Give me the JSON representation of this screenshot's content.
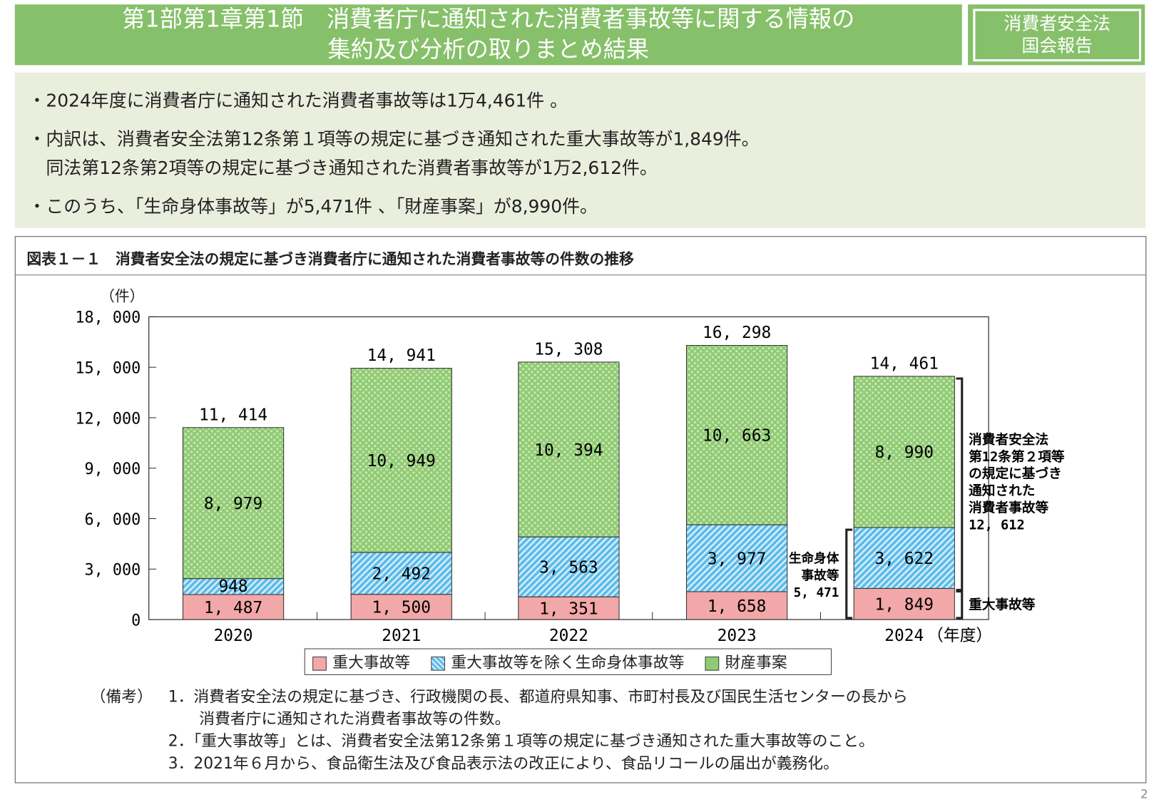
{
  "header": {
    "title_line1": "第1部第1章第1節　消費者庁に通知された消費者事故等に関する情報の",
    "title_line2": "集約及び分析の取りまとめ結果",
    "badge_line1": "消費者安全法",
    "badge_line2": "国会報告"
  },
  "summary": {
    "bullets": [
      "・2024年度に消費者庁に通知された消費者事故等は1万4,461件 。",
      "・内訳は、消費者安全法第12条第１項等の規定に基づき通知された重大事故等が1,849件。",
      "　同法第12条第2項等の規定に基づき通知された消費者事故等が1万2,612件。",
      "・このうち、「生命身体事故等」が5,471件 、「財産事案」が8,990件。"
    ]
  },
  "figure": {
    "title": "図表１－１　消費者安全法の規定に基づき消費者庁に通知された消費者事故等の件数の推移"
  },
  "chart_data": {
    "type": "bar",
    "stacked": true,
    "categories": [
      "2020",
      "2021",
      "2022",
      "2023",
      "2024"
    ],
    "x_unit": "（年度）",
    "ylabel": "（件）",
    "ylim": [
      0,
      18000
    ],
    "yticks": [
      0,
      3000,
      6000,
      9000,
      12000,
      15000,
      18000
    ],
    "ytick_labels": [
      "0",
      "3, 000",
      "6, 000",
      "9, 000",
      "12, 000",
      "15, 000",
      "18, 000"
    ],
    "series": [
      {
        "name": "重大事故等",
        "color": "#f2a7a8",
        "pattern": "solid",
        "values": [
          1487,
          1500,
          1351,
          1658,
          1849
        ],
        "labels": [
          "1, 487",
          "1, 500",
          "1, 351",
          "1, 658",
          "1, 849"
        ]
      },
      {
        "name": "重大事故等を除く生命身体事故等",
        "color": "#5bbbea",
        "pattern": "diagonal-stripes",
        "values": [
          948,
          2492,
          3563,
          3977,
          3622
        ],
        "labels": [
          "948",
          "2, 492",
          "3, 563",
          "3, 977",
          "3, 622"
        ]
      },
      {
        "name": "財産事案",
        "color": "#8fcb73",
        "pattern": "checker",
        "values": [
          8979,
          10949,
          10394,
          10663,
          8990
        ],
        "labels": [
          "8, 979",
          "10, 949",
          "10, 394",
          "10, 663",
          "8, 990"
        ]
      }
    ],
    "totals": [
      11414,
      14941,
      15308,
      16298,
      14461
    ],
    "total_labels": [
      "11, 414",
      "14, 941",
      "15, 308",
      "16, 298",
      "14, 461"
    ],
    "annotations": {
      "article12_2": [
        "消費者安全法",
        "第12条第２項等",
        "の規定に基づき",
        "通知された",
        "消費者事故等",
        "12, 612"
      ],
      "life_body": [
        "生命身体",
        "事故等",
        "5, 471"
      ],
      "serious": "重大事故等"
    },
    "legend_position": "bottom",
    "grid": false
  },
  "notes": {
    "label": "（備考）",
    "items": [
      "1．消費者安全法の規定に基づき、行政機関の長、都道府県知事、市町村長及び国民生活センターの長から",
      "　　消費者庁に通知された消費者事故等の件数。",
      "2．「重大事故等」とは、消費者安全法第12条第１項等の規定に基づき通知された重大事故等のこと。",
      "3．2021年６月から、食品衛生法及び食品表示法の改正により、食品リコールの届出が義務化。"
    ]
  },
  "page_number": "2"
}
